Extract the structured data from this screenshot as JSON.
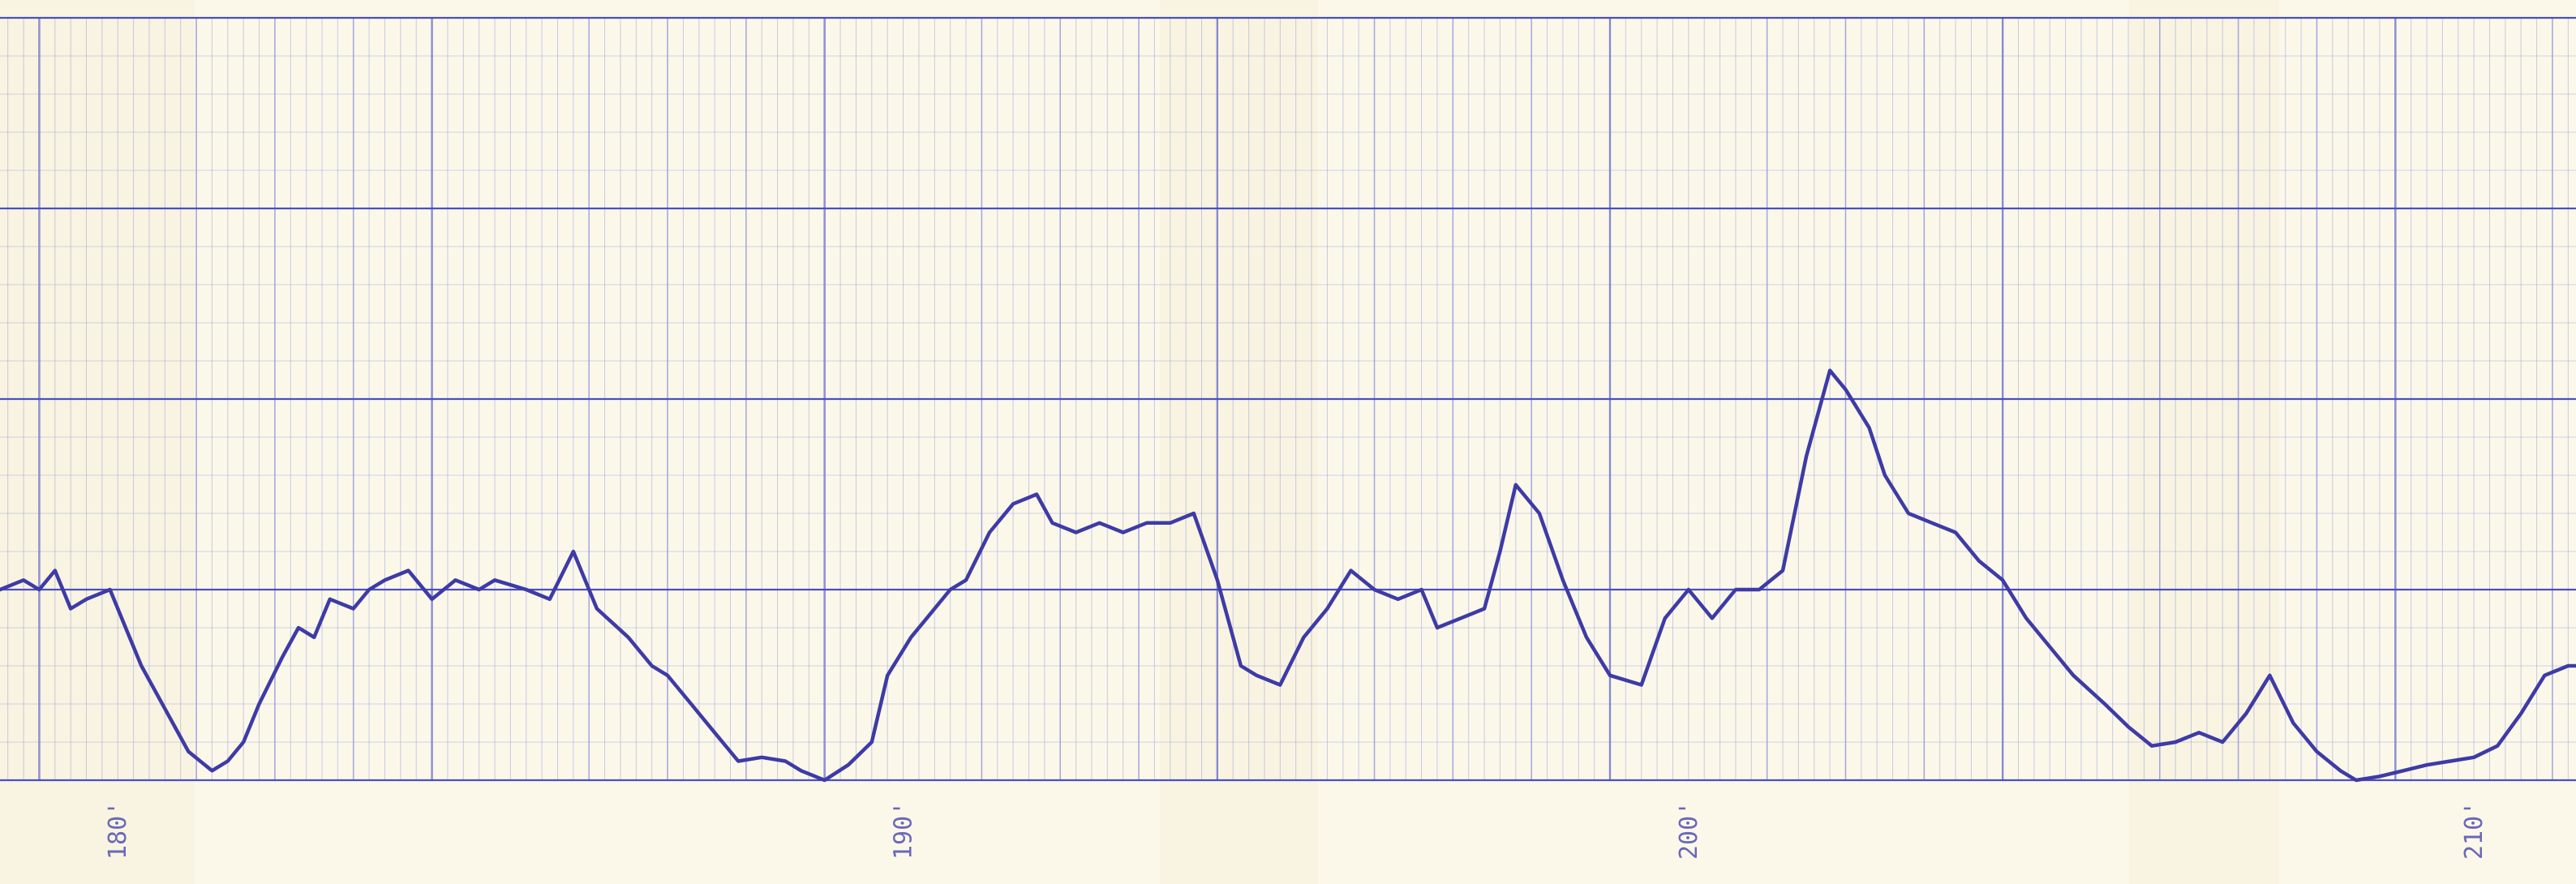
{
  "colors": {
    "paper": "#fbf8ea",
    "paper_fold": "#f6f1dc",
    "minor_grid": "#9fa2dd",
    "major_grid": "#4a4fc0",
    "trace": "#3e3ba6",
    "label": "#6a68b8"
  },
  "chart_data": {
    "type": "line",
    "title": "",
    "xlabel": "",
    "ylabel": "",
    "grid": true,
    "legend": "none",
    "xlim": [
      178.5,
      211.3
    ],
    "ylim": [
      0,
      4
    ],
    "x_ticks": [
      {
        "value": 180,
        "label": "180'"
      },
      {
        "value": 190,
        "label": "190'"
      },
      {
        "value": 200,
        "label": "200'"
      },
      {
        "value": 210,
        "label": "210'"
      }
    ],
    "series": [
      {
        "x": [
          178.5,
          178.8,
          179.0,
          179.2,
          179.4,
          179.6,
          179.9,
          180.1,
          180.3,
          180.5,
          180.7,
          180.9,
          181.2,
          181.4,
          181.6,
          181.8,
          182.1,
          182.3,
          182.5,
          182.7,
          183.0,
          183.2,
          183.4,
          183.7,
          184.0,
          184.3,
          184.6,
          184.8,
          185.2,
          185.5,
          185.8,
          186.1,
          186.5,
          186.8,
          187.0,
          187.3,
          187.6,
          187.9,
          188.2,
          188.5,
          188.7,
          189.0,
          189.3,
          189.6,
          189.8,
          190.1,
          190.3,
          190.6,
          190.8,
          191.1,
          191.4,
          191.7,
          191.9,
          192.2,
          192.5,
          192.8,
          193.1,
          193.4,
          193.7,
          194.0,
          194.3,
          194.5,
          194.8,
          195.1,
          195.4,
          195.7,
          196.0,
          196.3,
          196.6,
          196.8,
          197.1,
          197.4,
          197.6,
          197.8,
          198.1,
          198.4,
          198.7,
          199.0,
          199.4,
          199.7,
          200.0,
          200.3,
          200.6,
          200.9,
          201.2,
          201.5,
          201.8,
          202.0,
          202.3,
          202.5,
          202.8,
          203.1,
          203.4,
          203.7,
          204.0,
          204.3,
          204.6,
          204.9,
          205.3,
          205.6,
          205.9,
          206.2,
          206.5,
          206.8,
          207.1,
          207.4,
          207.7,
          208.0,
          208.3,
          208.5,
          208.8,
          209.1,
          209.4,
          209.7,
          210.0,
          210.3,
          210.6,
          210.9,
          211.2,
          211.3
        ],
        "y": [
          1.0,
          1.05,
          1.0,
          1.1,
          0.9,
          0.95,
          1.0,
          0.8,
          0.6,
          0.45,
          0.3,
          0.15,
          0.05,
          0.1,
          0.2,
          0.4,
          0.65,
          0.8,
          0.75,
          0.95,
          0.9,
          1.0,
          1.05,
          1.1,
          0.95,
          1.05,
          1.0,
          1.05,
          1.0,
          0.95,
          1.2,
          0.9,
          0.75,
          0.6,
          0.55,
          0.4,
          0.25,
          0.1,
          0.12,
          0.1,
          0.05,
          0.0,
          0.08,
          0.2,
          0.55,
          0.75,
          0.85,
          1.0,
          1.05,
          1.3,
          1.45,
          1.5,
          1.35,
          1.3,
          1.35,
          1.3,
          1.35,
          1.35,
          1.4,
          1.05,
          0.6,
          0.55,
          0.5,
          0.75,
          0.9,
          1.1,
          1.0,
          0.95,
          1.0,
          0.8,
          0.85,
          0.9,
          1.2,
          1.55,
          1.4,
          1.05,
          0.75,
          0.55,
          0.5,
          0.85,
          1.0,
          0.85,
          1.0,
          1.0,
          1.1,
          1.7,
          2.15,
          2.05,
          1.85,
          1.6,
          1.4,
          1.35,
          1.3,
          1.15,
          1.05,
          0.85,
          0.7,
          0.55,
          0.4,
          0.28,
          0.18,
          0.2,
          0.25,
          0.2,
          0.35,
          0.55,
          0.3,
          0.15,
          0.05,
          0.0,
          0.02,
          0.05,
          0.08,
          0.1,
          0.12,
          0.18,
          0.35,
          0.55,
          0.6,
          0.6
        ]
      }
    ]
  }
}
